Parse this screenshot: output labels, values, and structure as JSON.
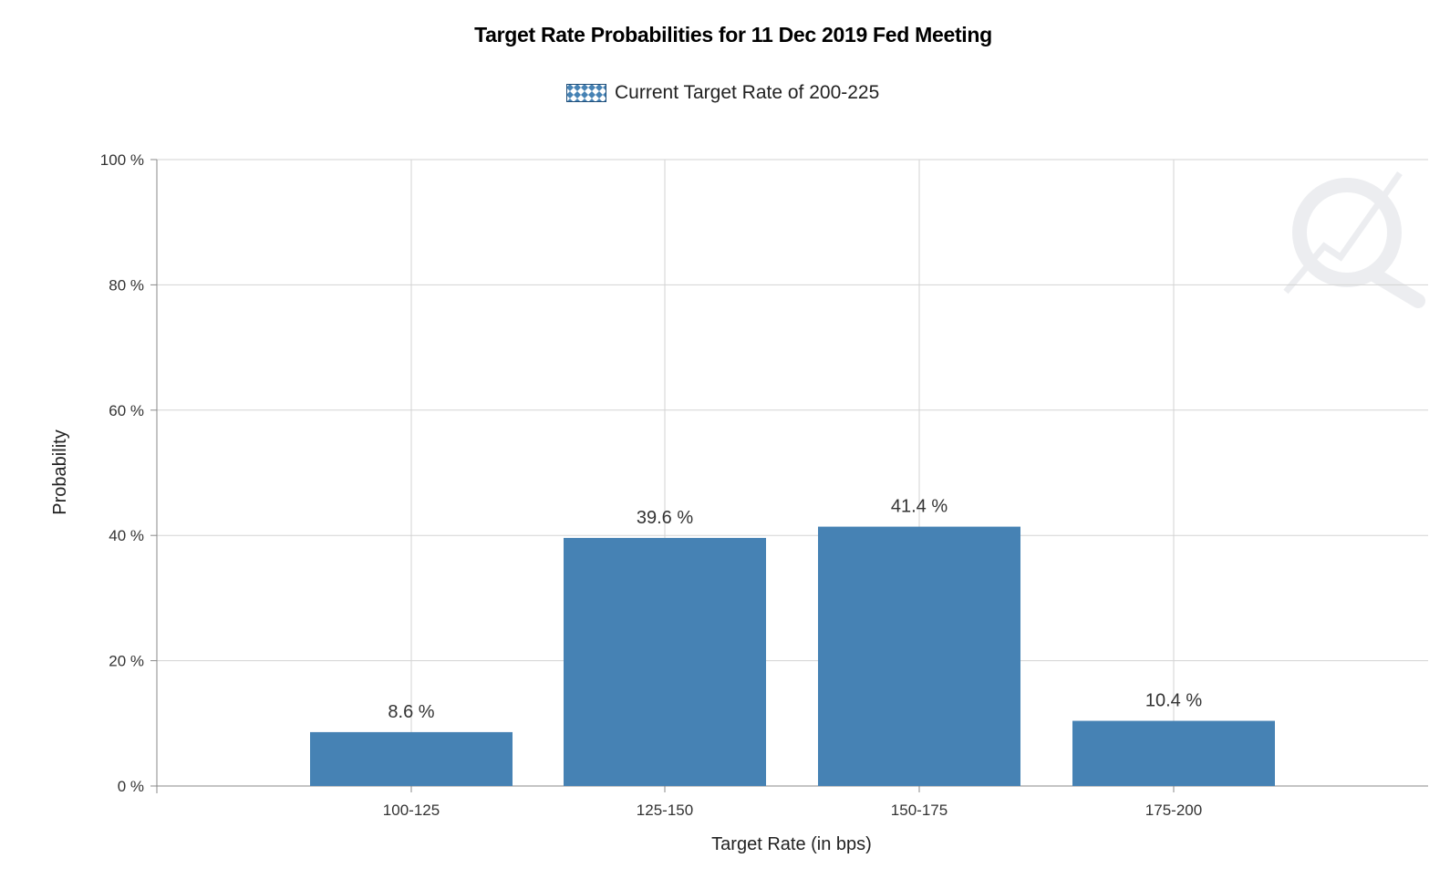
{
  "chart_data": {
    "type": "bar",
    "title": "Target Rate Probabilities for 11 Dec 2019 Fed Meeting",
    "legend": {
      "label": "Current Target Rate of 200-225",
      "placement": "top-center"
    },
    "categories": [
      "100-125",
      "125-150",
      "150-175",
      "175-200"
    ],
    "values": [
      8.6,
      39.6,
      41.4,
      10.4
    ],
    "data_labels": [
      "8.6 %",
      "39.6 %",
      "41.4 %",
      "10.4 %"
    ],
    "xlabel": "Target Rate (in bps)",
    "ylabel": "Probability",
    "ylim": [
      0,
      100
    ],
    "yticks": [
      0,
      20,
      40,
      60,
      80,
      100
    ],
    "ytick_labels": [
      "0 %",
      "20 %",
      "40 %",
      "60 %",
      "80 %",
      "100 %"
    ],
    "grid": true,
    "colors": {
      "bar": "#4682b4",
      "grid": "#d3d3d3",
      "legend_pattern": "#4682b4"
    }
  }
}
